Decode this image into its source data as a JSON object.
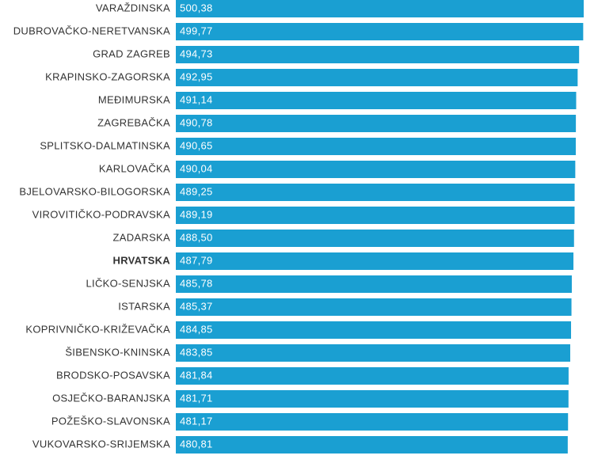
{
  "chart_data": {
    "type": "bar",
    "orientation": "horizontal",
    "color": "#1a9fd2",
    "highlight": "HRVATSKA",
    "categories": [
      "VARAŽDINSKA",
      "DUBROVAČKO-NERETVANSKA",
      "GRAD ZAGREB",
      "KRAPINSKO-ZAGORSKA",
      "MEĐIMURSKA",
      "ZAGREBAČKA",
      "SPLITSKO-DALMATINSKA",
      "KARLOVAČKA",
      "BJELOVARSKO-BILOGORSKA",
      "VIROVITIČKO-PODRAVSKA",
      "ZADARSKA",
      "HRVATSKA",
      "LIČKO-SENJSKA",
      "ISTARSKA",
      "KOPRIVNIČKO-KRIŽEVAČKA",
      "ŠIBENSKO-KNINSKA",
      "BRODSKO-POSAVSKA",
      "OSJEČKO-BARANJSKA",
      "POŽEŠKO-SLAVONSKA",
      "VUKOVARSKO-SRIJEMSKA"
    ],
    "values": [
      500.38,
      499.77,
      494.73,
      492.95,
      491.14,
      490.78,
      490.65,
      490.04,
      489.25,
      489.19,
      488.5,
      487.79,
      485.78,
      485.37,
      484.85,
      483.85,
      481.84,
      481.71,
      481.17,
      480.81
    ],
    "value_labels": [
      "500,38",
      "499,77",
      "494,73",
      "492,95",
      "491,14",
      "490,78",
      "490,65",
      "490,04",
      "489,25",
      "489,19",
      "488,50",
      "487,79",
      "485,78",
      "485,37",
      "484,85",
      "483,85",
      "481,84",
      "481,71",
      "481,17",
      "480,81"
    ]
  }
}
